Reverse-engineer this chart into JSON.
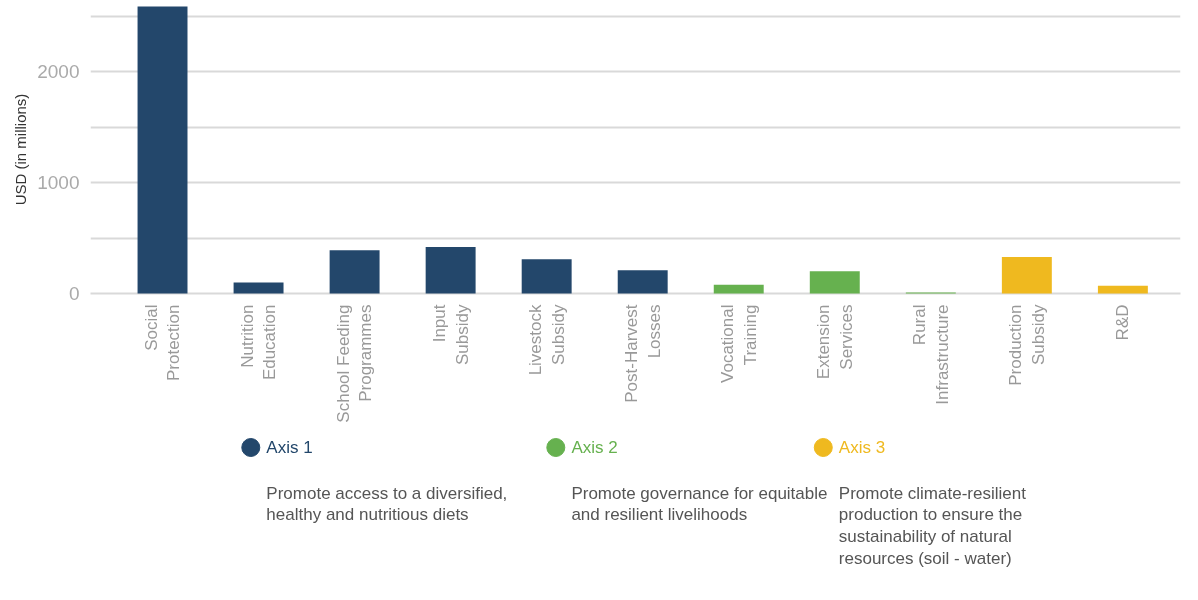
{
  "chart_data": {
    "type": "bar",
    "ylabel": "USD (in millions)",
    "categories": [
      "Social Protection",
      "Nutrition Education",
      "School Feeding Programmes",
      "Input Subsidy",
      "Livestock Subsidy",
      "Post-Harvest Losses",
      "Vocational Training",
      "Extension Services",
      "Rural Infrastructure",
      "Production Subsidy",
      "R&D"
    ],
    "series": [
      {
        "name": "Axis 1",
        "color": "#23476b",
        "values": [
          2590,
          100,
          390,
          420,
          310,
          210,
          null,
          null,
          null,
          null,
          null
        ]
      },
      {
        "name": "Axis 2",
        "color": "#66b14f",
        "values": [
          null,
          null,
          null,
          null,
          null,
          null,
          80,
          200,
          10,
          null,
          null
        ]
      },
      {
        "name": "Axis 3",
        "color": "#efb91f",
        "values": [
          null,
          null,
          null,
          null,
          null,
          null,
          null,
          null,
          null,
          330,
          70
        ]
      }
    ],
    "annotations": [
      "Promote access to a diversified, healthy and nutritious diets",
      "Promote governance for equitable and resilient livelihoods",
      "Promote climate-resilient production to ensure the sustainability of natural resources (soil - water)"
    ],
    "ylim": [
      0,
      2600
    ],
    "yticks": [
      0,
      {
        "value": 500,
        "label": null
      },
      1000,
      {
        "value": 1500,
        "label": null
      },
      2000,
      {
        "value": 2500,
        "label": null
      }
    ],
    "grid": "y",
    "legend": "bottom"
  }
}
